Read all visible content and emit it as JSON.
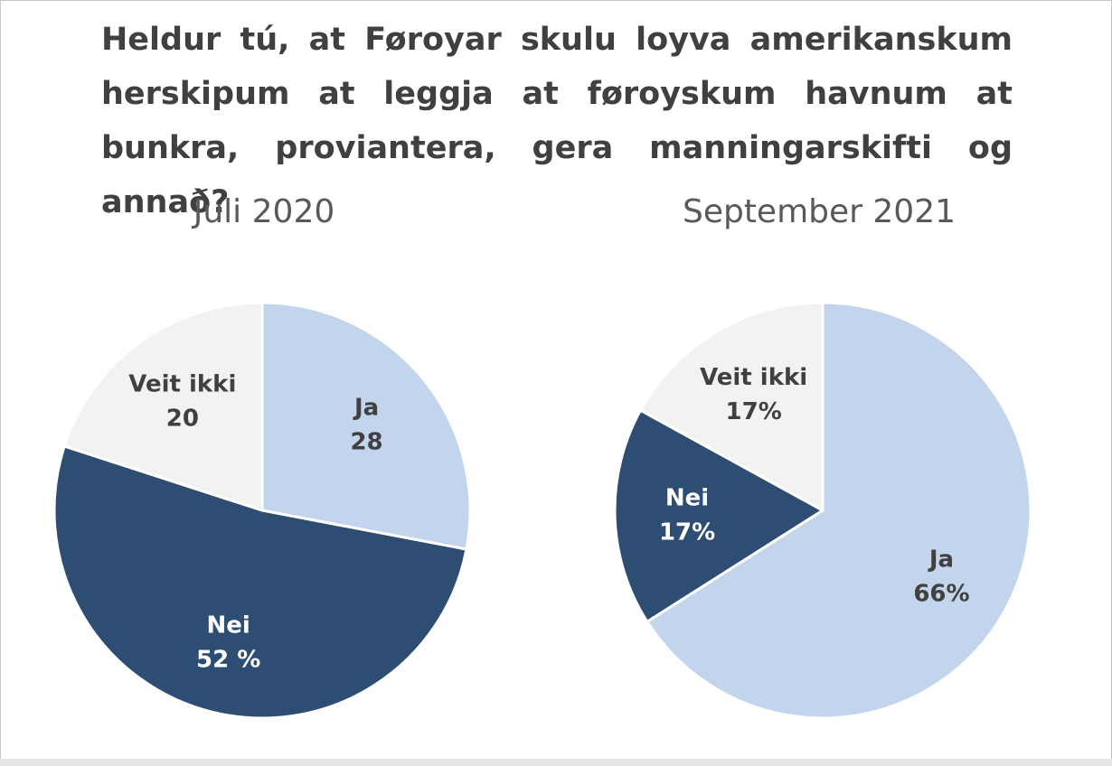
{
  "question": "Heldur tú, at Føroyar skulu loyva amerikanskum herskipum at leggja at føroyskum havnum at bunkra, proviantera, gera manningarskifti og annað?",
  "colors": {
    "ja": "#c2d5ec",
    "nei": "#2d4d72",
    "veit_ikki": "#f2f2f2",
    "dark_text": "#404040",
    "light_text": "#ffffff"
  },
  "chart_data": [
    {
      "type": "pie",
      "title": "Juli 2020",
      "start_angle_deg": 0,
      "direction": "clockwise",
      "slices": [
        {
          "category": "Ja",
          "value": 28,
          "label_name": "Ja",
          "label_value": "28",
          "color_key": "ja",
          "text_color_key": "dark_text"
        },
        {
          "category": "Nei",
          "value": 52,
          "label_name": "Nei",
          "label_value": "52 %",
          "color_key": "nei",
          "text_color_key": "light_text"
        },
        {
          "category": "Veit ikki",
          "value": 20,
          "label_name": "Veit ikki",
          "label_value": "20",
          "color_key": "veit_ikki",
          "text_color_key": "dark_text"
        }
      ]
    },
    {
      "type": "pie",
      "title": "September 2021",
      "start_angle_deg": 0,
      "direction": "clockwise",
      "slices": [
        {
          "category": "Ja",
          "value": 66,
          "label_name": "Ja",
          "label_value": "66%",
          "color_key": "ja",
          "text_color_key": "dark_text"
        },
        {
          "category": "Nei",
          "value": 17,
          "label_name": "Nei",
          "label_value": "17%",
          "color_key": "nei",
          "text_color_key": "light_text"
        },
        {
          "category": "Veit ikki",
          "value": 17,
          "label_name": "Veit ikki",
          "label_value": "17%",
          "color_key": "veit_ikki",
          "text_color_key": "dark_text"
        }
      ]
    }
  ]
}
